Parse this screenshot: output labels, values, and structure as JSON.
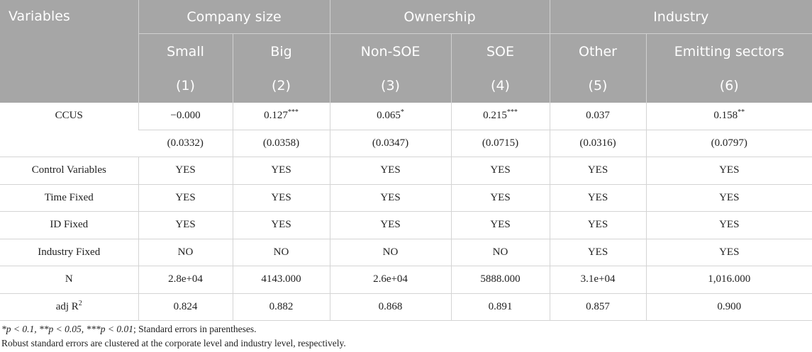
{
  "header": {
    "variables_label": "Variables",
    "groups": [
      "Company size",
      "Ownership",
      "Industry"
    ],
    "subgroups": [
      "Small",
      "Big",
      "Non-SOE",
      "SOE",
      "Other",
      "Emitting sectors"
    ],
    "column_numbers": [
      "(1)",
      "(2)",
      "(3)",
      "(4)",
      "(5)",
      "(6)"
    ]
  },
  "rows": {
    "ccus": {
      "label": "CCUS",
      "coefs": [
        "−0.000",
        "0.127***",
        "0.065*",
        "0.215***",
        "0.037",
        "0.158**"
      ],
      "se": [
        "(0.0332)",
        "(0.0358)",
        "(0.0347)",
        "(0.0715)",
        "(0.0316)",
        "(0.0797)"
      ]
    },
    "control": {
      "label": "Control Variables",
      "values": [
        "YES",
        "YES",
        "YES",
        "YES",
        "YES",
        "YES"
      ]
    },
    "time_fixed": {
      "label": "Time Fixed",
      "values": [
        "YES",
        "YES",
        "YES",
        "YES",
        "YES",
        "YES"
      ]
    },
    "id_fixed": {
      "label": "ID Fixed",
      "values": [
        "YES",
        "YES",
        "YES",
        "YES",
        "YES",
        "YES"
      ]
    },
    "industry_fixed": {
      "label": "Industry Fixed",
      "values": [
        "NO",
        "NO",
        "NO",
        "NO",
        "YES",
        "YES"
      ]
    },
    "n": {
      "label": "N",
      "values": [
        "2.8e+04",
        "4143.000",
        "2.6e+04",
        "5888.000",
        "3.1e+04",
        "1,016.000"
      ]
    },
    "adj_r2": {
      "label": "adj R",
      "label_sup": "2",
      "values": [
        "0.824",
        "0.882",
        "0.868",
        "0.891",
        "0.857",
        "0.900"
      ]
    }
  },
  "notes": {
    "significance": "*p < 0.1, **p < 0.05, ***p < 0.01",
    "se_note": "; Standard errors in parentheses.",
    "robust_note": "Robust standard errors are clustered at the corporate level and industry level, respectively."
  }
}
